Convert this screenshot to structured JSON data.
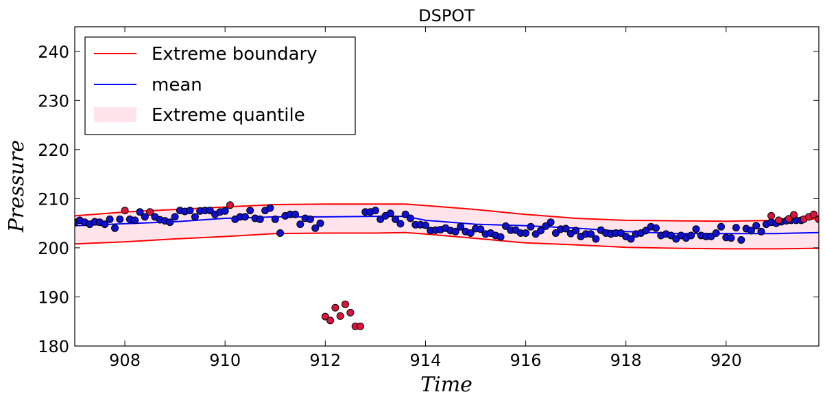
{
  "chart_data": {
    "type": "scatter",
    "title": "DSPOT",
    "xlabel": "Time",
    "ylabel": "Pressure",
    "xlim": [
      907,
      921.85
    ],
    "ylim": [
      180,
      245
    ],
    "xticks": [
      908,
      910,
      912,
      914,
      916,
      918,
      920
    ],
    "yticks": [
      180,
      190,
      200,
      210,
      220,
      230,
      240
    ],
    "grid": false,
    "legend_position": "top-left",
    "colors": {
      "boundary": "#ff0000",
      "mean": "#0000ff",
      "band": "#ffe4ec",
      "normal_point": "#1010d0",
      "anomaly_point": "#dc143c"
    },
    "legend": [
      {
        "label": "Extreme boundary",
        "kind": "line",
        "color": "#ff0000"
      },
      {
        "label": "mean",
        "kind": "line",
        "color": "#0000ff"
      },
      {
        "label": "Extreme quantile",
        "kind": "band",
        "color": "#ffe4ec"
      }
    ],
    "series": [
      {
        "name": "Extreme boundary",
        "upper": [
          [
            907,
            206.5
          ],
          [
            908,
            207.3
          ],
          [
            909,
            207.8
          ],
          [
            910,
            208.3
          ],
          [
            911,
            208.8
          ],
          [
            912,
            208.9
          ],
          [
            913,
            208.9
          ],
          [
            913.6,
            208.9
          ],
          [
            914,
            208.6
          ],
          [
            915,
            207.8
          ],
          [
            916,
            206.8
          ],
          [
            917,
            206.0
          ],
          [
            918,
            205.6
          ],
          [
            919,
            205.5
          ],
          [
            920,
            205.4
          ],
          [
            921,
            205.6
          ],
          [
            921.85,
            205.9
          ]
        ],
        "lower": [
          [
            907,
            200.8
          ],
          [
            908,
            201.2
          ],
          [
            909,
            201.8
          ],
          [
            910,
            202.3
          ],
          [
            911,
            202.9
          ],
          [
            912,
            203.0
          ],
          [
            913,
            203.0
          ],
          [
            913.6,
            203.1
          ],
          [
            914,
            202.8
          ],
          [
            915,
            201.9
          ],
          [
            916,
            201.0
          ],
          [
            917,
            200.6
          ],
          [
            918,
            200.1
          ],
          [
            919,
            199.9
          ],
          [
            920,
            199.8
          ],
          [
            921,
            199.8
          ],
          [
            921.85,
            199.9
          ]
        ]
      },
      {
        "name": "mean",
        "points": [
          [
            907,
            204.5
          ],
          [
            908,
            204.9
          ],
          [
            909,
            205.3
          ],
          [
            910,
            206.0
          ],
          [
            911,
            206.3
          ],
          [
            912,
            206.3
          ],
          [
            913,
            206.4
          ],
          [
            913.6,
            206.4
          ],
          [
            914,
            205.6
          ],
          [
            915,
            204.8
          ],
          [
            916,
            204.5
          ],
          [
            917,
            204.0
          ],
          [
            918,
            203.3
          ],
          [
            919,
            202.9
          ],
          [
            920,
            202.9
          ],
          [
            921,
            202.9
          ],
          [
            921.85,
            203.1
          ]
        ]
      }
    ],
    "normal_points": [
      [
        907.0,
        205.2
      ],
      [
        907.1,
        205.6
      ],
      [
        907.2,
        205.2
      ],
      [
        907.3,
        204.8
      ],
      [
        907.4,
        205.3
      ],
      [
        907.5,
        205.2
      ],
      [
        907.6,
        204.8
      ],
      [
        907.7,
        205.8
      ],
      [
        907.8,
        204.0
      ],
      [
        907.9,
        205.8
      ],
      [
        908.1,
        205.8
      ],
      [
        908.2,
        205.6
      ],
      [
        908.3,
        207.3
      ],
      [
        908.4,
        206.3
      ],
      [
        908.6,
        206.3
      ],
      [
        908.7,
        205.7
      ],
      [
        908.8,
        205.5
      ],
      [
        908.9,
        205.2
      ],
      [
        909.0,
        206.3
      ],
      [
        909.1,
        207.6
      ],
      [
        909.2,
        207.4
      ],
      [
        909.3,
        207.6
      ],
      [
        909.4,
        206.3
      ],
      [
        909.5,
        207.5
      ],
      [
        909.6,
        207.6
      ],
      [
        909.7,
        207.6
      ],
      [
        909.8,
        206.8
      ],
      [
        909.9,
        207.3
      ],
      [
        910.0,
        207.5
      ],
      [
        910.2,
        205.8
      ],
      [
        910.3,
        206.3
      ],
      [
        910.4,
        206.3
      ],
      [
        910.5,
        207.6
      ],
      [
        910.6,
        206.0
      ],
      [
        910.7,
        205.8
      ],
      [
        910.8,
        207.6
      ],
      [
        910.9,
        208.1
      ],
      [
        911.0,
        205.8
      ],
      [
        911.1,
        203.0
      ],
      [
        911.2,
        206.5
      ],
      [
        911.3,
        206.8
      ],
      [
        911.4,
        206.8
      ],
      [
        911.5,
        204.8
      ],
      [
        911.6,
        206.0
      ],
      [
        911.7,
        205.8
      ],
      [
        911.8,
        204.0
      ],
      [
        911.9,
        205.0
      ],
      [
        912.8,
        207.3
      ],
      [
        912.9,
        207.3
      ],
      [
        913.0,
        207.6
      ],
      [
        913.1,
        205.8
      ],
      [
        913.2,
        206.5
      ],
      [
        913.3,
        207.0
      ],
      [
        913.4,
        205.8
      ],
      [
        913.5,
        204.9
      ],
      [
        913.6,
        206.8
      ],
      [
        913.7,
        206.0
      ],
      [
        913.8,
        204.7
      ],
      [
        913.9,
        204.7
      ],
      [
        914.0,
        204.6
      ],
      [
        914.1,
        203.5
      ],
      [
        914.2,
        203.6
      ],
      [
        914.3,
        203.7
      ],
      [
        914.4,
        204.0
      ],
      [
        914.5,
        203.5
      ],
      [
        914.6,
        203.3
      ],
      [
        914.7,
        204.3
      ],
      [
        914.8,
        203.3
      ],
      [
        914.9,
        203.0
      ],
      [
        915.0,
        203.9
      ],
      [
        915.1,
        203.8
      ],
      [
        915.2,
        202.8
      ],
      [
        915.3,
        203.0
      ],
      [
        915.4,
        202.5
      ],
      [
        915.5,
        202.2
      ],
      [
        915.6,
        204.4
      ],
      [
        915.7,
        203.6
      ],
      [
        915.8,
        203.6
      ],
      [
        915.9,
        203.0
      ],
      [
        916.0,
        203.0
      ],
      [
        916.1,
        204.3
      ],
      [
        916.2,
        202.8
      ],
      [
        916.3,
        203.5
      ],
      [
        916.4,
        204.4
      ],
      [
        916.5,
        205.2
      ],
      [
        916.6,
        203.0
      ],
      [
        916.7,
        203.8
      ],
      [
        916.8,
        203.9
      ],
      [
        916.9,
        202.9
      ],
      [
        917.0,
        203.5
      ],
      [
        917.1,
        202.3
      ],
      [
        917.2,
        202.8
      ],
      [
        917.3,
        202.8
      ],
      [
        917.4,
        201.8
      ],
      [
        917.5,
        203.6
      ],
      [
        917.6,
        203.0
      ],
      [
        917.7,
        202.8
      ],
      [
        917.8,
        203.0
      ],
      [
        917.9,
        203.0
      ],
      [
        918.0,
        202.3
      ],
      [
        918.1,
        201.8
      ],
      [
        918.2,
        202.8
      ],
      [
        918.3,
        203.0
      ],
      [
        918.4,
        203.5
      ],
      [
        918.5,
        204.3
      ],
      [
        918.6,
        204.0
      ],
      [
        918.7,
        202.5
      ],
      [
        918.8,
        202.8
      ],
      [
        918.9,
        202.5
      ],
      [
        919.0,
        201.8
      ],
      [
        919.1,
        202.5
      ],
      [
        919.2,
        202.0
      ],
      [
        919.3,
        202.5
      ],
      [
        919.4,
        203.8
      ],
      [
        919.5,
        202.5
      ],
      [
        919.6,
        202.3
      ],
      [
        919.7,
        202.3
      ],
      [
        919.8,
        203.0
      ],
      [
        919.9,
        204.3
      ],
      [
        920.0,
        202.1
      ],
      [
        920.1,
        202.0
      ],
      [
        920.2,
        204.1
      ],
      [
        920.3,
        201.6
      ],
      [
        920.4,
        203.9
      ],
      [
        920.5,
        203.5
      ],
      [
        920.6,
        204.5
      ],
      [
        920.7,
        203.3
      ],
      [
        920.8,
        204.8
      ],
      [
        920.9,
        205.2
      ],
      [
        921.0,
        205.0
      ],
      [
        921.1,
        205.3
      ],
      [
        921.2,
        205.5
      ],
      [
        921.3,
        205.6
      ],
      [
        921.4,
        205.6
      ],
      [
        921.5,
        205.6
      ]
    ],
    "anomaly_points": [
      [
        908.0,
        207.6
      ],
      [
        908.5,
        207.3
      ],
      [
        910.1,
        208.7
      ],
      [
        912.0,
        186.0
      ],
      [
        912.1,
        185.2
      ],
      [
        912.2,
        187.8
      ],
      [
        912.3,
        186.1
      ],
      [
        912.4,
        188.5
      ],
      [
        912.5,
        186.8
      ],
      [
        912.6,
        184.0
      ],
      [
        912.7,
        184.0
      ],
      [
        920.9,
        206.5
      ],
      [
        921.05,
        205.6
      ],
      [
        921.25,
        205.9
      ],
      [
        921.35,
        206.7
      ],
      [
        921.55,
        205.8
      ],
      [
        921.65,
        206.3
      ],
      [
        921.75,
        206.8
      ],
      [
        921.85,
        205.8
      ]
    ]
  }
}
